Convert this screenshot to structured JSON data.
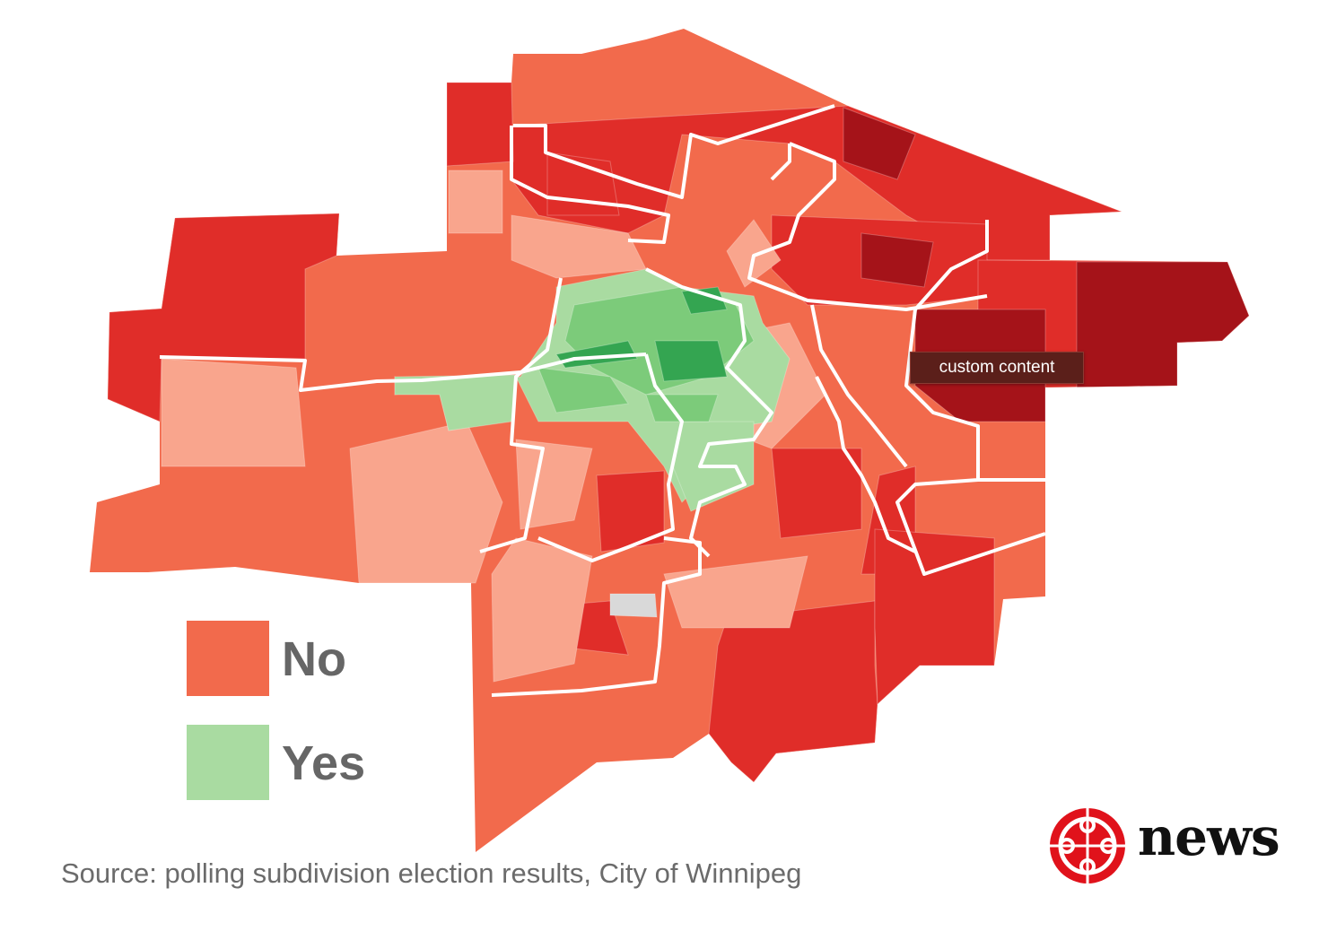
{
  "map": {
    "colors": {
      "no_light": "#f9a58d",
      "no_mid": "#f26a4c",
      "no_strong": "#e02d29",
      "no_darkest": "#a51319",
      "yes_light": "#a9dba1",
      "yes_mid": "#7ccb7a",
      "yes_dark": "#34a551",
      "nodata": "#d9d9d9",
      "boundary": "#ffffff"
    },
    "legend": [
      {
        "label": "No",
        "color": "#f26a4c"
      },
      {
        "label": "Yes",
        "color": "#a9dba1"
      }
    ],
    "tooltip": "custom content",
    "source_note": "Source: polling subdivision election results, City of Winnipeg",
    "logo": {
      "word": "news",
      "mark": "cbc-gem-icon",
      "color": "#e0121b"
    }
  }
}
